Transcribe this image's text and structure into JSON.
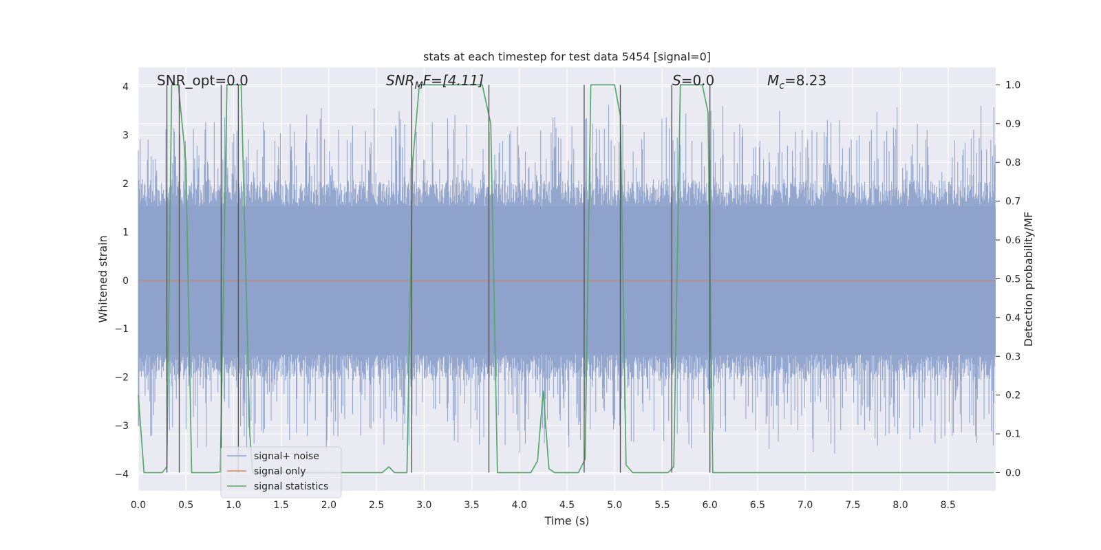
{
  "chart_data": {
    "type": "line",
    "title": "stats at each timestep for test data 5454 [signal=0]",
    "xlabel": "Time (s)",
    "ylabel": "Whitened strain",
    "y2label": "Detection probability/MF",
    "xlim": [
      0,
      9.0
    ],
    "ylim": [
      -4.35,
      4.4
    ],
    "y2lim": [
      -0.047,
      1.045
    ],
    "xticks": [
      0.0,
      0.5,
      1.0,
      1.5,
      2.0,
      2.5,
      3.0,
      3.5,
      4.0,
      4.5,
      5.0,
      5.5,
      6.0,
      6.5,
      7.0,
      7.5,
      8.0,
      8.5
    ],
    "xtick_labels": [
      "0.0",
      "0.5",
      "1.0",
      "1.5",
      "2.0",
      "2.5",
      "3.0",
      "3.5",
      "4.0",
      "4.5",
      "5.0",
      "5.5",
      "6.0",
      "6.5",
      "7.0",
      "7.5",
      "8.0",
      "8.5"
    ],
    "yticks": [
      4,
      3,
      2,
      1,
      0,
      -1,
      -2,
      -3,
      -4
    ],
    "ytick_labels": [
      "4",
      "3",
      "2",
      "1",
      "0",
      "−1",
      "−2",
      "−3",
      "−4"
    ],
    "y2ticks": [
      1.0,
      0.9,
      0.8,
      0.7,
      0.6,
      0.5,
      0.4,
      0.3,
      0.2,
      0.1,
      0.0
    ],
    "y2tick_labels": [
      "1.0",
      "0.9",
      "0.8",
      "0.7",
      "0.6",
      "0.5",
      "0.4",
      "0.3",
      "0.2",
      "0.1",
      "0.0"
    ],
    "annotations": {
      "snr_opt": "SNR_opt=0.0",
      "snr_mf_main": "SNR",
      "snr_mf_sub": "M",
      "snr_mf_rest": "F=[4.11]",
      "s_var": "S",
      "s_rest": "=0.0",
      "mc_var": "M",
      "mc_sub": "c",
      "mc_rest": "=8.23"
    },
    "grid": true,
    "legend": {
      "placement": "lower-left",
      "entries": [
        "signal+ noise",
        "signal only",
        "signal statistics"
      ]
    },
    "colors": {
      "noise": "#8ea2cb",
      "signal": "#dd8452",
      "stats": "#55a868",
      "vlines": "#555555",
      "bg": "#eaeaf2"
    },
    "noise_envelope": {
      "typical_amplitude": 1.8,
      "max_amplitude": 4.0
    },
    "series": [
      {
        "name": "signal+ noise",
        "description": "whitened strain time series (noise only)"
      },
      {
        "name": "signal only",
        "x": [
          0.0,
          9.0
        ],
        "y": [
          0.0,
          0.0
        ]
      },
      {
        "name": "signal statistics",
        "axis": "right",
        "x": [
          0.0,
          0.06,
          0.25,
          0.3,
          0.35,
          0.42,
          0.5,
          0.56,
          0.8,
          0.86,
          0.93,
          1.08,
          1.17,
          1.2,
          2.5,
          2.56,
          2.63,
          2.69,
          2.82,
          2.88,
          2.95,
          3.61,
          3.7,
          3.77,
          3.84,
          4.12,
          4.19,
          4.25,
          4.31,
          4.37,
          4.62,
          4.69,
          4.75,
          5.0,
          5.06,
          5.12,
          5.19,
          5.25,
          5.56,
          5.62,
          5.69,
          5.92,
          5.98,
          6.03,
          6.07,
          8.98
        ],
        "y": [
          0.2,
          0.0,
          0.0,
          0.015,
          1.0,
          1.0,
          0.8,
          0.0,
          0.0,
          0.002,
          1.0,
          1.0,
          0.1,
          0.0,
          0.0,
          0.0,
          0.015,
          0.0,
          0.0,
          0.8,
          1.0,
          1.0,
          0.9,
          0.0,
          0.0,
          0.0,
          0.03,
          0.21,
          0.01,
          0.0,
          0.0,
          0.035,
          1.0,
          1.0,
          0.92,
          0.02,
          0.0,
          0.0,
          0.0,
          0.015,
          1.0,
          1.0,
          0.93,
          0.0,
          0.0,
          0.0
        ]
      }
    ],
    "vertical_lines": [
      0.3,
      0.43,
      0.87,
      1.05,
      2.87,
      3.68,
      4.68,
      5.06,
      5.6,
      6.0
    ]
  }
}
